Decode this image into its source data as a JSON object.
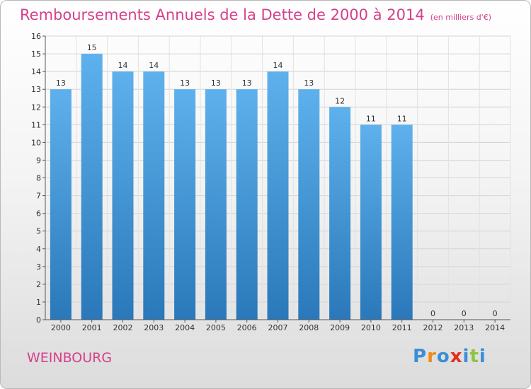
{
  "title": "Remboursements Annuels de la Dette de 2000 à 2014",
  "unit": "(en milliers d'€)",
  "location": "WEINBOURG",
  "brand": {
    "letters": [
      "P",
      "r",
      "o",
      "x",
      "i",
      "t",
      "i"
    ],
    "colors": [
      "#3a8fd6",
      "#f08a1c",
      "#3a8fd6",
      "#e0301e",
      "#3a8fd6",
      "#8cc63f",
      "#3a8fd6"
    ]
  },
  "colors": {
    "bar_top": "#5eb1ec",
    "bar_bottom": "#2a78b9",
    "title": "#d6408a"
  },
  "chart_data": {
    "type": "bar",
    "title": "Remboursements Annuels de la Dette de 2000 à 2014",
    "subtitle": "(en milliers d'€)",
    "categories": [
      "2000",
      "2001",
      "2002",
      "2003",
      "2004",
      "2005",
      "2006",
      "2007",
      "2008",
      "2009",
      "2010",
      "2011",
      "2012",
      "2013",
      "2014"
    ],
    "values": [
      13,
      15,
      14,
      14,
      13,
      13,
      13,
      14,
      13,
      12,
      11,
      11,
      0,
      0,
      0
    ],
    "ylim": [
      0,
      16
    ],
    "yticks": [
      0,
      1,
      2,
      3,
      4,
      5,
      6,
      7,
      8,
      9,
      10,
      11,
      12,
      13,
      14,
      15,
      16
    ],
    "grid": true,
    "xlabel": "",
    "ylabel": ""
  }
}
